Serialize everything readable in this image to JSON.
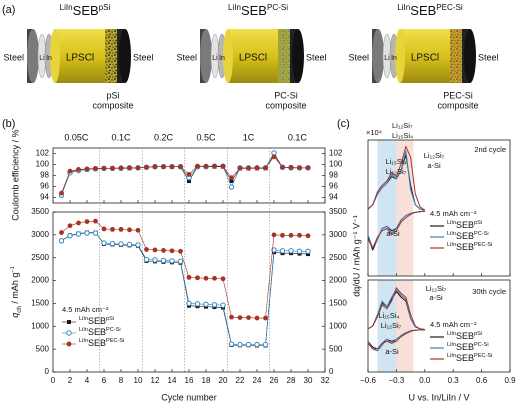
{
  "panel_labels": [
    "(a)",
    "(b)",
    "(c)"
  ],
  "schematics": [
    {
      "title_pre": "LiIn",
      "title": "SEB",
      "title_post": "pSi",
      "color": "#1a1a1a",
      "steel_left": "Steel",
      "li": "Li",
      "in": "In",
      "electrolyte": "LPSCl",
      "steel_right": "Steel",
      "composite": [
        "pSi",
        "composite"
      ]
    },
    {
      "title_pre": "LiIn",
      "title": "SEB",
      "title_post": "PC-Si",
      "color": "#2e86c1",
      "steel_left": "Steel",
      "li": "Li",
      "in": "In",
      "electrolyte": "LPSCl",
      "steel_right": "Steel",
      "composite": [
        "PC-Si",
        "composite"
      ]
    },
    {
      "title_pre": "LiIn",
      "title": "SEB",
      "title_post": "PEC-Si",
      "color": "#a93226",
      "steel_left": "Steel",
      "li": "Li",
      "in": "In",
      "electrolyte": "LPSCl",
      "steel_right": "Steel",
      "composite": [
        "PEC-Si",
        "composite"
      ]
    }
  ],
  "chart_data": [
    {
      "type": "line",
      "ylabel": "Coulomb efficiency / %",
      "xlim": [
        0,
        32
      ],
      "xticks": [
        0,
        2,
        4,
        6,
        8,
        10,
        12,
        14,
        16,
        18,
        20,
        22,
        24,
        26,
        28,
        30,
        32
      ],
      "xtick_labels": false,
      "ylim": [
        93,
        103
      ],
      "yticks": [
        94,
        96,
        98,
        100,
        102
      ],
      "y2lim": [
        93,
        103
      ],
      "y2ticks": [
        94,
        96,
        98,
        100,
        102
      ],
      "rate_labels": [
        "0.05C",
        "0.1C",
        "0.2C",
        "0.5C",
        "1C",
        "0.1C"
      ],
      "rate_boundaries": [
        5.5,
        10.5,
        15.5,
        20.5,
        25.5
      ],
      "x": [
        1,
        2,
        3,
        4,
        5,
        6,
        7,
        8,
        9,
        10,
        11,
        12,
        13,
        14,
        15,
        16,
        17,
        18,
        19,
        20,
        21,
        22,
        23,
        24,
        25,
        26,
        27,
        28,
        29,
        30
      ],
      "series": [
        {
          "color": "#1a1a1a",
          "marker": "square",
          "values": [
            94.6,
            98.6,
            99.0,
            99.1,
            99.2,
            99.3,
            99.3,
            99.3,
            99.3,
            99.4,
            99.5,
            99.6,
            99.6,
            99.6,
            99.6,
            97.0,
            99.6,
            99.6,
            99.6,
            99.6,
            97.0,
            99.3,
            99.3,
            99.3,
            99.3,
            101.8,
            99.5,
            99.4,
            99.4,
            99.4
          ]
        },
        {
          "color": "#2e86c1",
          "marker": "circle-open",
          "values": [
            94.4,
            98.5,
            98.9,
            99.1,
            99.2,
            99.3,
            99.3,
            99.3,
            99.4,
            99.4,
            99.5,
            99.6,
            99.6,
            99.6,
            99.6,
            97.6,
            99.6,
            99.6,
            99.7,
            99.7,
            95.9,
            99.4,
            99.4,
            99.4,
            99.4,
            102.1,
            99.5,
            99.4,
            99.4,
            99.4
          ]
        },
        {
          "color": "#a93226",
          "marker": "circle",
          "values": [
            94.8,
            98.8,
            99.1,
            99.2,
            99.3,
            99.3,
            99.3,
            99.4,
            99.4,
            99.4,
            99.5,
            99.6,
            99.6,
            99.6,
            99.6,
            98.2,
            99.7,
            99.7,
            99.7,
            99.7,
            97.6,
            99.3,
            99.3,
            99.4,
            99.4,
            101.4,
            99.5,
            99.5,
            99.4,
            99.4
          ]
        }
      ]
    },
    {
      "type": "line",
      "xlabel": "Cycle number",
      "ylabel": {
        "symbol": "q",
        "symbol_sub": "ch",
        "unit": " / mAh g",
        "unit_sup": "−1"
      },
      "xlim": [
        0,
        32
      ],
      "xticks": [
        0,
        2,
        4,
        6,
        8,
        10,
        12,
        14,
        16,
        18,
        20,
        22,
        24,
        26,
        28,
        30,
        32
      ],
      "ylim": [
        0,
        3500
      ],
      "yticks": [
        0,
        500,
        1000,
        1500,
        2000,
        2500,
        3000,
        3500
      ],
      "y2lim": [
        0,
        3500
      ],
      "y2ticks": [
        0,
        500,
        1000,
        1500,
        2000,
        2500,
        3000,
        3500
      ],
      "annotations": [
        "4.5 mAh cm⁻²"
      ],
      "legend": "lower left",
      "x": [
        1,
        2,
        3,
        4,
        5,
        6,
        7,
        8,
        9,
        10,
        11,
        12,
        13,
        14,
        15,
        16,
        17,
        18,
        19,
        20,
        21,
        22,
        23,
        24,
        25,
        26,
        27,
        28,
        29,
        30
      ],
      "series": [
        {
          "name_pre": "LiIn",
          "name": "SEB",
          "name_post": "pSi",
          "color": "#1a1a1a",
          "marker": "square",
          "values": [
            2870,
            2990,
            3030,
            3050,
            3050,
            2800,
            2790,
            2780,
            2770,
            2760,
            2430,
            2420,
            2410,
            2400,
            2390,
            1450,
            1440,
            1430,
            1420,
            1410,
            590,
            585,
            585,
            580,
            580,
            2620,
            2600,
            2600,
            2590,
            2580
          ]
        },
        {
          "name_pre": "LiIn",
          "name": "SEB",
          "name_post": "PC-Si",
          "color": "#2e86c1",
          "marker": "circle-open",
          "values": [
            2870,
            2980,
            3020,
            3040,
            3040,
            2820,
            2810,
            2800,
            2790,
            2780,
            2460,
            2450,
            2440,
            2430,
            2420,
            1500,
            1490,
            1480,
            1470,
            1460,
            610,
            600,
            600,
            600,
            600,
            2670,
            2650,
            2650,
            2640,
            2640
          ]
        },
        {
          "name_pre": "LiIn",
          "name": "SEB",
          "name_post": "PEC-Si",
          "color": "#a93226",
          "marker": "circle",
          "values": [
            3050,
            3200,
            3260,
            3290,
            3300,
            3130,
            3120,
            3120,
            3110,
            3100,
            2680,
            2670,
            2660,
            2650,
            2640,
            2070,
            2060,
            2050,
            2050,
            2040,
            1200,
            1190,
            1190,
            1180,
            1180,
            3000,
            2990,
            2990,
            2990,
            2980
          ]
        }
      ]
    },
    {
      "type": "dqdu",
      "ylabel": "dq/dU / mAh g⁻¹ V⁻¹",
      "xlim": [
        -0.6,
        0.9
      ],
      "xticks": [
        -0.6,
        -0.3,
        0,
        0.3,
        0.6,
        0.9
      ],
      "xtick_labels": false,
      "ylim": [
        -3,
        3.3
      ],
      "shaded_ranges": [
        {
          "from": -0.5,
          "to": -0.3,
          "color": "#2e86c1"
        },
        {
          "from": -0.3,
          "to": -0.12,
          "color": "#e07050"
        }
      ],
      "annotations": [
        "×10⁴",
        "Li₁₂Si₇",
        "Li₁₅Si₄",
        "Li₁₅Si₄",
        "Li₁₂Si₇",
        "Li₁₂Si₇",
        "a-Si",
        "a-Si",
        "2nd cycle",
        "4.5 mAh cm⁻²"
      ],
      "legend": "lower right",
      "x": [
        -0.6,
        -0.55,
        -0.5,
        -0.45,
        -0.4,
        -0.35,
        -0.3,
        -0.25,
        -0.2,
        -0.15,
        -0.1,
        -0.05,
        0.0
      ],
      "series": [
        {
          "name_pre": "LiIn",
          "name": "SEB",
          "name_post": "pSi",
          "color": "#1a1a1a",
          "charge": [
            0.1,
            0.3,
            0.8,
            1.1,
            1.3,
            1.6,
            1.5,
            1.9,
            2.6,
            1.2,
            0.3,
            0.1,
            0.05
          ],
          "discharge": [
            -1.2,
            -1.8,
            -1.3,
            -0.8,
            -0.7,
            -0.9,
            -0.8,
            -0.4,
            -0.2,
            -0.1,
            -0.05,
            -0.02,
            0
          ]
        },
        {
          "name_pre": "LiIn",
          "name": "SEB",
          "name_post": "PC-Si",
          "color": "#2e86c1",
          "charge": [
            0.1,
            0.3,
            0.8,
            1.1,
            1.3,
            1.7,
            1.5,
            1.9,
            2.8,
            1.0,
            0.3,
            0.1,
            0.05
          ],
          "discharge": [
            -1.1,
            -1.7,
            -1.3,
            -0.8,
            -0.7,
            -1.0,
            -0.8,
            -0.4,
            -0.2,
            -0.1,
            -0.05,
            -0.02,
            0
          ]
        },
        {
          "name_pre": "LiIn",
          "name": "SEB",
          "name_post": "PEC-Si",
          "color": "#a93226",
          "charge": [
            0.1,
            0.3,
            0.9,
            1.2,
            1.4,
            1.8,
            1.6,
            2.2,
            3.0,
            2.5,
            0.8,
            0.2,
            0.05
          ],
          "discharge": [
            -1.3,
            -1.7,
            -1.2,
            -0.9,
            -0.8,
            -1.1,
            -0.9,
            -0.5,
            -0.3,
            -0.15,
            -0.05,
            -0.02,
            0
          ]
        }
      ]
    },
    {
      "type": "dqdu",
      "xlabel": "U vs. In/LiIn / V",
      "xlim": [
        -0.6,
        0.9
      ],
      "xticks": [
        {
          "value": -0.6,
          "label": "−0.6"
        },
        {
          "value": -0.3,
          "label": "−0.3"
        },
        {
          "value": 0,
          "label": "0.0"
        },
        0.3,
        0.6,
        0.9
      ],
      "ylim": [
        -2.2,
        2.6
      ],
      "shaded_ranges": [
        {
          "from": -0.5,
          "to": -0.3,
          "color": "#2e86c1"
        },
        {
          "from": -0.3,
          "to": -0.12,
          "color": "#e07050"
        }
      ],
      "annotations": [
        "Li₁₅Si₄",
        "Li₁₂Si₇",
        "Li₁₂Si₇",
        "a-Si",
        "a-Si",
        "30th cycle",
        "4.5 mAh cm⁻²"
      ],
      "legend": "lower right",
      "x": [
        -0.6,
        -0.55,
        -0.5,
        -0.45,
        -0.4,
        -0.35,
        -0.3,
        -0.25,
        -0.2,
        -0.15,
        -0.1,
        -0.05,
        0.0
      ],
      "series": [
        {
          "name_pre": "LiIn",
          "name": "SEB",
          "name_post": "pSi",
          "color": "#1a1a1a",
          "charge": [
            0.05,
            0.2,
            0.7,
            1.4,
            1.2,
            1.6,
            2.0,
            1.7,
            1.5,
            0.6,
            0.15,
            0.05,
            0.02
          ],
          "discharge": [
            -0.6,
            -0.9,
            -1.0,
            -0.7,
            -0.5,
            -0.6,
            -0.5,
            -0.3,
            -0.15,
            -0.05,
            -0.02,
            0,
            0
          ]
        },
        {
          "name_pre": "LiIn",
          "name": "SEB",
          "name_post": "PC-Si",
          "color": "#2e86c1",
          "charge": [
            0.05,
            0.2,
            0.8,
            1.5,
            1.2,
            1.7,
            2.1,
            1.8,
            1.6,
            0.6,
            0.15,
            0.05,
            0.02
          ],
          "discharge": [
            -0.6,
            -1.0,
            -1.1,
            -0.8,
            -0.5,
            -0.7,
            -0.5,
            -0.3,
            -0.15,
            -0.05,
            -0.02,
            0,
            0
          ]
        },
        {
          "name_pre": "LiIn",
          "name": "SEB",
          "name_post": "PEC-Si",
          "color": "#a93226",
          "charge": [
            0.05,
            0.2,
            0.7,
            1.3,
            1.1,
            1.5,
            2.2,
            1.9,
            1.7,
            0.8,
            0.2,
            0.05,
            0.02
          ],
          "discharge": [
            -0.7,
            -1.0,
            -1.0,
            -0.7,
            -0.6,
            -0.7,
            -0.6,
            -0.35,
            -0.2,
            -0.08,
            -0.02,
            0,
            0
          ]
        }
      ]
    }
  ]
}
